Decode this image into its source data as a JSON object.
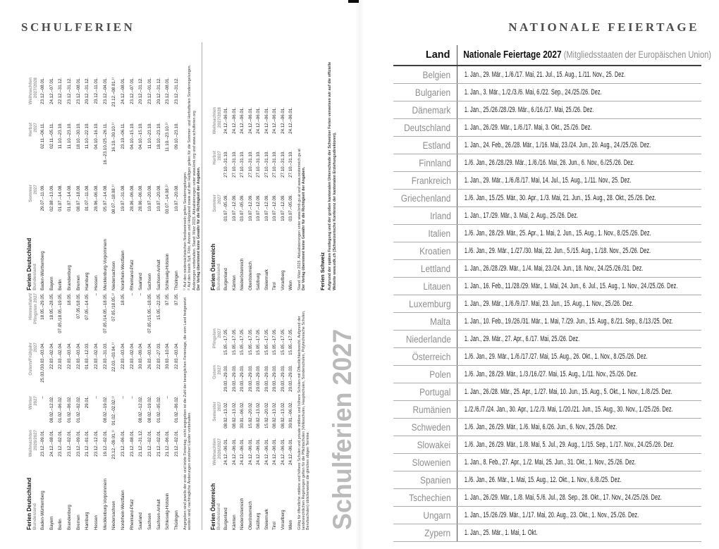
{
  "page_left": {
    "title": "SCHULFERIEN",
    "watermark": "Schulferien 2027",
    "germany": {
      "title": "Ferien Deutschland",
      "subtitle": "Bundesland",
      "states": [
        "Baden-Württemberg",
        "Bayern",
        "Berlin",
        "Brandenburg",
        "Bremen",
        "Hamburg",
        "Hessen",
        "Mecklenburg-Vorpommern",
        "Niedersachsen",
        "Nordrhein-Westfalen",
        "Rheinland-Pfalz",
        "Saarland",
        "Sachsen",
        "Sachsen-Anhalt",
        "Schleswig-Holstein",
        "Thüringen"
      ],
      "part1": {
        "columns": [
          "Weihnachten\n2026/2027",
          "Winter\n2027",
          "Ostern/Frühjahr\n2027",
          "Himmelfahrt/\nPfingsten 2027"
        ],
        "rows": [
          [
            "23.12.–09.01.",
            "–",
            "25.03./30.03.–03.04.",
            "18.05.–29.05."
          ],
          [
            "24.12.–08.01.",
            "08.02.–12.02.",
            "22.03.–02.04.",
            "18.05.–28.05."
          ],
          [
            "23.12.–02.01.",
            "01.02.–06.02.",
            "22.03.–02.04.",
            "07.05./18.05.–19.05."
          ],
          [
            "23.12.–02.01.",
            "01.02.–06.02.",
            "22.03.–03.04.",
            "18.05."
          ],
          [
            "23.12.–09.01.",
            "01.02.–02.02.",
            "22.03.–03.04.",
            "07.05./18.05."
          ],
          [
            "21.12.–01.01.",
            "29.01.",
            "01.03.–12.03.",
            "07.05.–14.05."
          ],
          [
            "23.12.–12.01.",
            "–",
            "22.03.–02.04.",
            "–"
          ],
          [
            "19.12.–02.01.",
            "08.02.–19.02.",
            "22.03.–31.03.",
            "07.05./14.05.–18.05."
          ],
          [
            "23.12.–09.01.¹⁾",
            "01.02.–02.02.¹⁾",
            "22.03.–03.04.¹⁾",
            "07.05./18.05.¹⁾"
          ],
          [
            "23.12.–06.01.",
            "–",
            "22.03.–03.04.",
            "18.05."
          ],
          [
            "23.12.–08.01.",
            "–",
            "22.03.–02.04.",
            "–"
          ],
          [
            "21.12.–31.12.",
            "08.02.–12.02.",
            "30.03.–09.04.",
            "–"
          ],
          [
            "23.12.–02.01.",
            "08.02.–19.02.",
            "26.03.–03.04.",
            "07.05./15.05.–18.05."
          ],
          [
            "21.12.–02.01.",
            "01.02.–05.02.",
            "22.03.–27.03.",
            "15.05.–22.05."
          ],
          [
            "21.12.–06.01.",
            "–",
            "30.03.–10.04.",
            "07.05."
          ],
          [
            "23.12.–02.01.",
            "01.02.–06.02.",
            "22.03.–03.04.",
            "07.05."
          ]
        ]
      },
      "part1_footnote": "Angegeben sind jeweils der erste und letzte Ferientag; nicht angegeben ist die Zahl der beweglichen Ferientage, die vom Land festgesetzt worden sind; nachträgliche Änderungen einzelner Länder vorbehalten.",
      "part2": {
        "columns": [
          "Sommer\n2027",
          "Herbst\n2027",
          "Weihnachten\n2027/2028"
        ],
        "rows": [
          [
            "29.07.–11.09.",
            "02.11.–06.11.",
            "23.12.–08.01."
          ],
          [
            "02.08.–13.09.",
            "02.11.–05.11.",
            "24.12.–07.01."
          ],
          [
            "01.07.–14.08.",
            "11.10.–23.10.",
            "22.12.–31.12."
          ],
          [
            "01.07.–14.08.",
            "11.10.–23.10.",
            "23.12.–31.12."
          ],
          [
            "08.07.–18.08.",
            "18.10.–30.10.",
            "23.12.–08.01."
          ],
          [
            "01.07.–11.08.",
            "11.10.–22.10.",
            "20.12.–31.12."
          ],
          [
            "28.06.–06.08.",
            "04.10.–16.10.",
            "23.12.–11.01."
          ],
          [
            "05.07.–14.08.",
            "16.–23.10./25.–26.11.",
            "23.12.–04.01."
          ],
          [
            "08.07.–18.08.¹⁾",
            "16.10.–30.10.¹⁾",
            "23.12.–08.01.¹⁾"
          ],
          [
            "19.07.–31.08.",
            "23.10.–06.11.",
            "24.12.–08.01."
          ],
          [
            "28.06.–06.08.",
            "04.10.–15.10.",
            "23.12.–07.01."
          ],
          [
            "28.06.–06.08.",
            "04.10.–15.10.",
            "20.12.–31.12."
          ],
          [
            "10.07.–20.08.",
            "11.10.–23.10.",
            "23.12.–01.01."
          ],
          [
            "10.07.–20.08.",
            "18.10.–23.10.",
            "20.12.–31.12."
          ],
          [
            "03.07.–14.08.²⁾",
            "11.10.–23.10.²⁾",
            "23.12.–08.01."
          ],
          [
            "10.07.–20.08.",
            "09.10.–23.10.",
            "23.12.–31.12."
          ]
        ]
      },
      "part2_footnotes": [
        {
          "text": "¹⁾ Auf den niedersächsischen Nordseeinseln gelten Sonderregelungen.",
          "bold": false
        },
        {
          "text": "²⁾ Auf den Inseln Sylt, Föhr, Amrum und Helgoland sowie auf den Halligen gelten für die Sommer- und Herbstferien Sonderregelungen.",
          "bold": false
        },
        {
          "text": "Änderungen vorbehalten. Stand: März 2025. Aktualisierungen unter www.kmk.org und www.schulferien.org",
          "bold": false
        },
        {
          "text": "Der Verlag übernimmt keine Gewähr für die Richtigkeit der Angaben.",
          "bold": true
        }
      ]
    },
    "austria": {
      "title": "Ferien Österreich",
      "subtitle": "Bundesland",
      "states": [
        "Burgenland",
        "Kärnten",
        "Niederösterreich",
        "Oberösterreich",
        "Salzburg",
        "Steiermark",
        "Tirol",
        "Vorarlberg",
        "Wien"
      ],
      "part1": {
        "columns": [
          "Weihnachten\n2026/2027",
          "Semester\n2027",
          "Ostern\n2027",
          "Pfingsten\n2027"
        ],
        "rows": [
          [
            "24.12.–06.01.",
            "08.02.–13.02.",
            "20.03.–29.03.",
            "15.05.–17.05."
          ],
          [
            "24.12.–06.01.",
            "08.02.–13.02.",
            "20.03.–29.03.",
            "15.05.–17.05."
          ],
          [
            "24.12.–06.01.",
            "30.01.–06.02.",
            "20.03.–29.03.",
            "15.05.–17.05."
          ],
          [
            "24.12.–06.01.",
            "15.02.–20.02.",
            "20.03.–29.03.",
            "15.05.–17.05."
          ],
          [
            "24.12.–06.01.",
            "08.02.–13.02.",
            "20.03.–29.03.",
            "15.05.–17.05."
          ],
          [
            "24.12.–06.01.",
            "15.02.–20.02.",
            "20.03.–29.03.",
            "15.05.–17.05."
          ],
          [
            "24.12.–06.01.",
            "08.02.–13.02.",
            "20.03.–29.03.",
            "15.05.–17.05."
          ],
          [
            "24.12.–06.01.",
            "08.02.–13.02.",
            "20.03.–29.03.",
            "15.05.–17.05."
          ],
          [
            "24.12.–06.01.",
            "30.01.–06.02.",
            "20.03.–29.03.",
            "15.05.–17.05."
          ]
        ]
      },
      "part1_footnote": "Gültig für öffentliche mittlere und höhere Schulen und private mittlere und höhere Schulen mit Öffentlichkeitsrecht. Aufgrund der landesrechtlichen Regelungen gelten für die Pflichtschulen (Volksschulen, Hauptschulen, Sonderschulen, Polytechnische Schulen, Berufsschulen) üblicherweise die gleichen obigen Termine.",
      "part2": {
        "columns": [
          "Sommer\n2027",
          "Herbst\n2027",
          "Weihnachten\n2027/2028"
        ],
        "rows": [
          [
            "03.07.–05.09.",
            "27.10.–31.10.",
            "24.12.–06.01."
          ],
          [
            "10.07.–12.09.",
            "27.10.–31.10.",
            "24.12.–06.01."
          ],
          [
            "03.07.–05.09.",
            "27.10.–31.10.",
            "24.12.–06.01."
          ],
          [
            "10.07.–12.09.",
            "27.10.–31.10.",
            "24.12.–06.01."
          ],
          [
            "10.07.–12.09.",
            "27.10.–31.10.",
            "24.12.–06.01."
          ],
          [
            "10.07.–12.09.",
            "27.10.–31.10.",
            "24.12.–06.01."
          ],
          [
            "10.07.–12.09.",
            "27.10.–31.10.",
            "24.12.–06.01."
          ],
          [
            "10.07.–12.09.",
            "27.10.–31.10.",
            "24.12.–06.01."
          ],
          [
            "03.07.–05.09.",
            "27.10.–31.10.",
            "24.12.–06.01."
          ]
        ]
      },
      "part2_footnotes": [
        {
          "text": "Stand: März 2025. Aktualisierungen unter www.bmb.gv.at und www.oesterreich.gv.at",
          "bold": false
        },
        {
          "text": "Der Verlag übernimmt keine Gewähr für die Richtigkeit der Angaben.",
          "bold": true
        }
      ]
    },
    "switzerland": {
      "title": "Ferien Schweiz",
      "text": "Aufgrund der späten Festlegung und der großen kantonalen Unterschiede der Schweizer Ferien verweisen wir auf die offizielle Website www.edk.ch (Schweizerische Konferenz der kantonalen Erziehungsdirektoren)."
    }
  },
  "page_right": {
    "title": "NATIONALE FEIERTAGE",
    "table": {
      "col1_header": "Land",
      "col2_header": "Nationale Feiertage 2027",
      "col2_subheader": " (Mitgliedsstaaten der Europäischen Union)",
      "rows": [
        {
          "country": "Belgien",
          "holidays": "1. Jan., 29. Mär., 1./6./17. Mai, 21. Jul., 15. Aug., 1./11. Nov., 25. Dez."
        },
        {
          "country": "Bulgarien",
          "holidays": "1. Jan., 3. Mär., 1./2./3./6. Mai, 6./22. Sep., 24./25./26. Dez."
        },
        {
          "country": "Dänemark",
          "holidays": "1. Jan., 25./26./28./29. Mär., 6./16./17. Mai, 25./26. Dez."
        },
        {
          "country": "Deutschland",
          "holidays": "1. Jan., 26./29. Mär., 1./6./17. Mai, 3. Okt., 25./26. Dez."
        },
        {
          "country": "Estland",
          "holidays": "1. Jan., 24. Feb., 26./28. Mär., 1./16. Mai, 23./24. Jun., 20. Aug., 24./25./26. Dez."
        },
        {
          "country": "Finnland",
          "holidays": "1./6. Jan., 26./28./29. Mär., 1./6./16. Mai, 26. Jun., 6. Nov., 6./25./26. Dez."
        },
        {
          "country": "Frankreich",
          "holidays": "1. Jan., 29. Mär., 1./6./8./17. Mai, 14. Jul., 15. Aug., 1./11. Nov., 25. Dez."
        },
        {
          "country": "Griechenland",
          "holidays": "1./6. Jan., 15./25. Mär., 30. Apr., 1./3. Mai, 21. Jun., 15. Aug., 28. Okt., 25./26. Dez."
        },
        {
          "country": "Irland",
          "holidays": "1. Jan., 17./29. Mär., 3. Mai, 2. Aug., 25./26. Dez."
        },
        {
          "country": "Italien",
          "holidays": "1./6. Jan., 28./29. Mär., 25. Apr., 1. Mai, 2. Jun., 15. Aug., 1. Nov., 8./25./26. Dez."
        },
        {
          "country": "Kroatien",
          "holidays": "1./6. Jan., 29. Mär., 1./27./30. Mai, 22. Jun., 5./15. Aug., 1./18. Nov., 25./26. Dez."
        },
        {
          "country": "Lettland",
          "holidays": "1. Jan., 26./28./29. Mär., 1./4. Mai, 23./24. Jun., 18. Nov., 24./25./26./31. Dez."
        },
        {
          "country": "Litauen",
          "holidays": "1. Jan., 16. Feb., 11./28./29. Mär., 1. Mai, 24. Jun., 6. Jul., 15. Aug., 1. Nov., 24./25./26. Dez."
        },
        {
          "country": "Luxemburg",
          "holidays": "1. Jan., 29. Mär., 1./6./9./17. Mai, 23. Jun., 15. Aug., 1. Nov., 25./26. Dez."
        },
        {
          "country": "Malta",
          "holidays": "1. Jan., 10. Feb., 19./26./31. Mär., 1. Mai, 7./29. Jun., 15. Aug., 8./21. Sep., 8./13./25. Dez."
        },
        {
          "country": "Niederlande",
          "holidays": "1. Jan., 29. Mär., 27. Apr., 6./17. Mai, 25./26. Dez."
        },
        {
          "country": "Österreich",
          "holidays": "1./6. Jan., 29. Mär., 1./6./17./27. Mai, 15. Aug., 26. Okt., 1. Nov., 8./25./26. Dez."
        },
        {
          "country": "Polen",
          "holidays": "1./6. Jan., 28./29. Mär., 1./3./16./27. Mai, 15. Aug., 1./11. Nov., 25./26. Dez."
        },
        {
          "country": "Portugal",
          "holidays": "1. Jan., 26./28. Mär., 25. Apr., 1./27. Mai, 10. Jun., 15. Aug., 5. Okt., 1. Nov., 1./8./25. Dez."
        },
        {
          "country": "Rumänien",
          "holidays": "1./2./6./7./24. Jan., 30. Apr., 1./2./3. Mai, 1./20./21. Jun., 15. Aug., 30. Nov., 1./25./26. Dez."
        },
        {
          "country": "Schweden",
          "holidays": "1./6. Jan., 26./29. Mär., 1./6. Mai, 6./26. Jun., 6. Nov., 25./26. Dez."
        },
        {
          "country": "Slowakei",
          "holidays": "1./6. Jan., 26./29. Mär., 1./8. Mai, 5. Jul., 29. Aug., 1./15. Sep., 1./17. Nov., 24./25./26. Dez."
        },
        {
          "country": "Slowenien",
          "holidays": "1. Jan., 8. Feb., 27. Apr., 1./2. Mai, 25. Jun., 31. Okt., 1. Nov., 25./26. Dez."
        },
        {
          "country": "Spanien",
          "holidays": "1./6. Jan., 26. Mär., 1. Mai, 15. Aug., 12. Okt., 1. Nov., 6./8./25. Dez."
        },
        {
          "country": "Tschechien",
          "holidays": "1. Jan., 26./29. Mär., 1./8. Mai, 5./6. Jul., 28. Sep., 28. Okt., 17. Nov., 24./25./26. Dez."
        },
        {
          "country": "Ungarn",
          "holidays": "1. Jan., 15./26./29. Mär., 1./17. Mai, 20. Aug., 23. Okt., 1. Nov., 25./26. Dez."
        },
        {
          "country": "Zypern",
          "holidays": "1. Jan., 25. Mär., 1. Mai, 1. Okt."
        }
      ]
    }
  }
}
